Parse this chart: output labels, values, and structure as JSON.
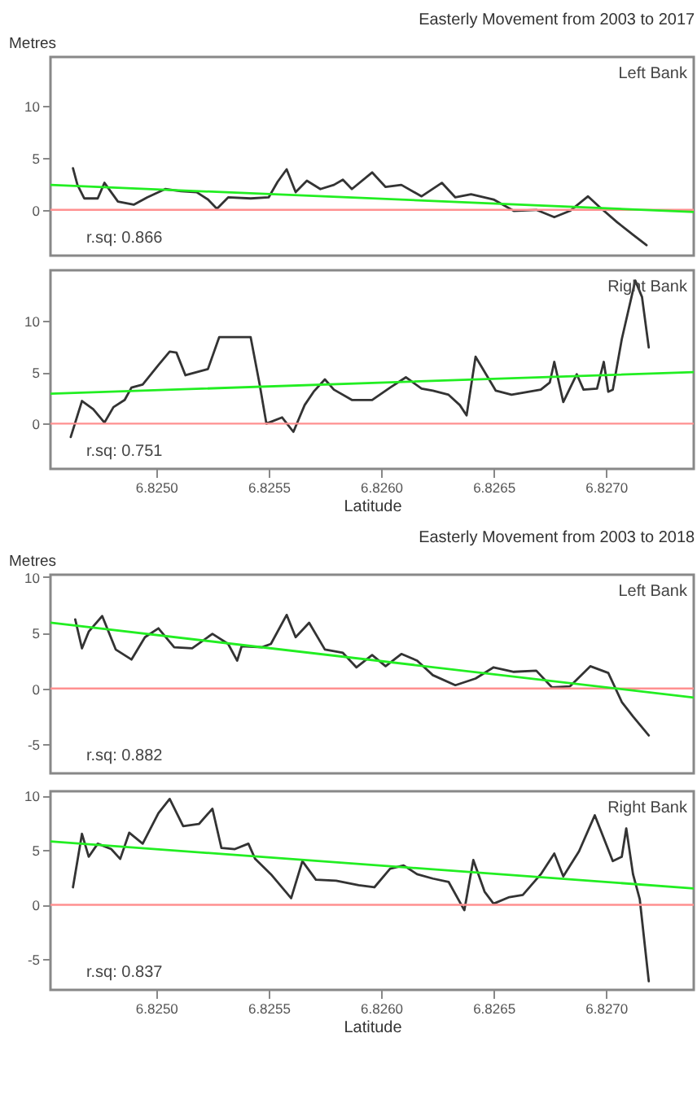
{
  "chart_data": [
    {
      "type": "line",
      "title": "Easterly Movement from 2003 to 2017",
      "ylabel": "Metres",
      "tick_labels": "y",
      "xlim": [
        6.82453,
        6.82739
      ],
      "ylim": [
        -4.4,
        14.7
      ],
      "yticks": [
        0,
        5,
        10
      ],
      "grid": false,
      "ref_lines": [
        {
          "axis": "y",
          "value": 0,
          "color": "#ff9090"
        }
      ],
      "annotations": [
        "Left Bank",
        "r.sq: 0.866"
      ],
      "series": [
        {
          "color": "#333333",
          "x": [
            6.82463,
            6.82465,
            6.82468,
            6.82474,
            6.82477,
            6.82483,
            6.8249,
            6.82496,
            6.82504,
            6.82511,
            6.82518,
            6.82523,
            6.82527,
            6.82532,
            6.82542,
            6.8255,
            6.82554,
            6.82558,
            6.82562,
            6.82567,
            6.82573,
            6.82579,
            6.82583,
            6.82587,
            6.82596,
            6.82602,
            6.82609,
            6.82618,
            6.82627,
            6.82633,
            6.8264,
            6.8265,
            6.82659,
            6.82669,
            6.82677,
            6.82684,
            6.82692,
            6.82697,
            6.82705,
            6.82712,
            6.82718
          ],
          "values": [
            4.0,
            2.4,
            1.1,
            1.1,
            2.6,
            0.8,
            0.5,
            1.2,
            2.0,
            1.8,
            1.7,
            1.0,
            0.1,
            1.2,
            1.1,
            1.2,
            2.7,
            3.9,
            1.7,
            2.8,
            2.0,
            2.4,
            2.9,
            2.0,
            3.6,
            2.2,
            2.4,
            1.3,
            2.6,
            1.2,
            1.5,
            1.0,
            -0.1,
            0,
            -0.7,
            -0.1,
            1.3,
            0.3,
            -1.2,
            -2.4,
            -3.4
          ]
        },
        {
          "type": "line",
          "color": "#22ee22",
          "x": [
            6.82453,
            6.82739
          ],
          "values": [
            2.4,
            -0.2
          ]
        }
      ]
    },
    {
      "type": "line",
      "xlabel": "Latitude",
      "xlim": [
        6.82453,
        6.82739
      ],
      "ylim": [
        -4.4,
        14.9
      ],
      "xticks": [
        {
          "value": 6.825,
          "label": "6.8250"
        },
        {
          "value": 6.8255,
          "label": "6.8255"
        },
        {
          "value": 6.826,
          "label": "6.8260"
        },
        {
          "value": 6.8265,
          "label": "6.8265"
        },
        {
          "value": 6.827,
          "label": "6.8270"
        }
      ],
      "yticks": [
        0,
        5,
        10
      ],
      "grid": false,
      "ref_lines": [
        {
          "axis": "y",
          "value": 0,
          "color": "#ff9090"
        }
      ],
      "annotations": [
        "Right Bank",
        "r.sq: 0.751"
      ],
      "series": [
        {
          "color": "#333333",
          "x": [
            6.82462,
            6.82467,
            6.82472,
            6.82477,
            6.82481,
            6.82486,
            6.82489,
            6.82494,
            6.82501,
            6.82506,
            6.82509,
            6.82513,
            6.82523,
            6.82528,
            6.82542,
            6.82546,
            6.82549,
            6.82556,
            6.82561,
            6.82566,
            6.8257,
            6.82575,
            6.82579,
            6.82587,
            6.82596,
            6.82604,
            6.82611,
            6.82618,
            6.82623,
            6.8263,
            6.82635,
            6.82638,
            6.82642,
            6.82648,
            6.82651,
            6.82658,
            6.82671,
            6.82675,
            6.82677,
            6.82681,
            6.82687,
            6.8269,
            6.82696,
            6.82699,
            6.82701,
            6.82703,
            6.82707,
            6.82713,
            6.82716,
            6.82719
          ],
          "values": [
            -1.3,
            2.2,
            1.4,
            0.1,
            1.6,
            2.3,
            3.5,
            3.8,
            5.7,
            7.0,
            6.9,
            4.7,
            5.3,
            8.4,
            8.4,
            3.8,
            0,
            0.6,
            -0.8,
            1.8,
            3.1,
            4.3,
            3.3,
            2.3,
            2.3,
            3.5,
            4.5,
            3.4,
            3.2,
            2.8,
            1.8,
            0.8,
            6.5,
            4.3,
            3.2,
            2.8,
            3.3,
            4.0,
            6.0,
            2.1,
            4.8,
            3.3,
            3.4,
            6.0,
            3.1,
            3.3,
            8.2,
            13.9,
            12.3,
            7.4
          ]
        },
        {
          "type": "line",
          "color": "#22ee22",
          "x": [
            6.82453,
            6.82739
          ],
          "values": [
            2.9,
            5.0
          ]
        }
      ]
    },
    {
      "type": "line",
      "title": "Easterly Movement from 2003 to 2018",
      "ylabel": "Metres",
      "tick_labels": "y",
      "xlim": [
        6.82453,
        6.82739
      ],
      "ylim": [
        -7.6,
        10.2
      ],
      "yticks": [
        -5,
        0,
        5,
        10
      ],
      "grid": false,
      "ref_lines": [
        {
          "axis": "y",
          "value": 0,
          "color": "#ff9090"
        }
      ],
      "annotations": [
        "Left Bank",
        "r.sq: 0.882"
      ],
      "series": [
        {
          "color": "#333333",
          "x": [
            6.82464,
            6.82467,
            6.8247,
            6.82476,
            6.82482,
            6.82489,
            6.82495,
            6.82501,
            6.82508,
            6.82516,
            6.82525,
            6.82532,
            6.82536,
            6.82538,
            6.82547,
            6.82551,
            6.82558,
            6.82562,
            6.82568,
            6.82575,
            6.82583,
            6.82589,
            6.82596,
            6.82602,
            6.82609,
            6.82616,
            6.82623,
            6.82633,
            6.82642,
            6.8265,
            6.82659,
            6.82669,
            6.82676,
            6.82684,
            6.82693,
            6.82701,
            6.82707,
            6.82712,
            6.82719
          ],
          "values": [
            6.2,
            3.6,
            5.1,
            6.5,
            3.5,
            2.6,
            4.6,
            5.4,
            3.7,
            3.6,
            4.9,
            4.0,
            2.5,
            3.8,
            3.7,
            4.0,
            6.6,
            4.6,
            5.9,
            3.5,
            3.2,
            1.9,
            3.0,
            2.0,
            3.1,
            2.5,
            1.2,
            0.3,
            0.9,
            1.9,
            1.5,
            1.6,
            0.1,
            0.2,
            2.0,
            1.4,
            -1.2,
            -2.5,
            -4.2
          ]
        },
        {
          "type": "line",
          "color": "#22ee22",
          "x": [
            6.82453,
            6.82739
          ],
          "values": [
            5.9,
            -0.8
          ]
        }
      ]
    },
    {
      "type": "line",
      "xlabel": "Latitude",
      "xlim": [
        6.82453,
        6.82739
      ],
      "ylim": [
        -7.8,
        10.4
      ],
      "xticks": [
        {
          "value": 6.825,
          "label": "6.8250"
        },
        {
          "value": 6.8255,
          "label": "6.8255"
        },
        {
          "value": 6.826,
          "label": "6.8260"
        },
        {
          "value": 6.8265,
          "label": "6.8265"
        },
        {
          "value": 6.827,
          "label": "6.8270"
        }
      ],
      "yticks": [
        -5,
        0,
        5,
        10
      ],
      "grid": false,
      "ref_lines": [
        {
          "axis": "y",
          "value": 0,
          "color": "#ff9090"
        }
      ],
      "annotations": [
        "Right Bank",
        "r.sq: 0.837"
      ],
      "series": [
        {
          "color": "#333333",
          "x": [
            6.82463,
            6.82467,
            6.8247,
            6.82474,
            6.8248,
            6.82484,
            6.82488,
            6.82494,
            6.82501,
            6.82506,
            6.82512,
            6.82519,
            6.82525,
            6.82529,
            6.82535,
            6.82541,
            6.82544,
            6.82551,
            6.8256,
            6.82565,
            6.82571,
            6.8258,
            6.8259,
            6.82597,
            6.82604,
            6.8261,
            6.82616,
            6.82623,
            6.8263,
            6.82637,
            6.82641,
            6.82646,
            6.8265,
            6.82657,
            6.82663,
            6.82671,
            6.82677,
            6.82681,
            6.82688,
            6.82695,
            6.82703,
            6.82707,
            6.82709,
            6.82712,
            6.82715,
            6.82719
          ],
          "values": [
            1.6,
            6.5,
            4.4,
            5.6,
            5.1,
            4.2,
            6.6,
            5.6,
            8.4,
            9.7,
            7.2,
            7.4,
            8.8,
            5.2,
            5.1,
            5.6,
            4.2,
            2.8,
            0.6,
            4.0,
            2.3,
            2.2,
            1.8,
            1.6,
            3.3,
            3.6,
            2.8,
            2.4,
            2.1,
            -0.5,
            4.1,
            1.2,
            0.1,
            0.7,
            0.9,
            2.8,
            4.7,
            2.6,
            4.9,
            8.2,
            4.0,
            4.4,
            7.0,
            2.8,
            0.5,
            -7.0
          ]
        },
        {
          "type": "line",
          "color": "#22ee22",
          "x": [
            6.82453,
            6.82739
          ],
          "values": [
            5.8,
            1.5
          ]
        }
      ]
    }
  ]
}
